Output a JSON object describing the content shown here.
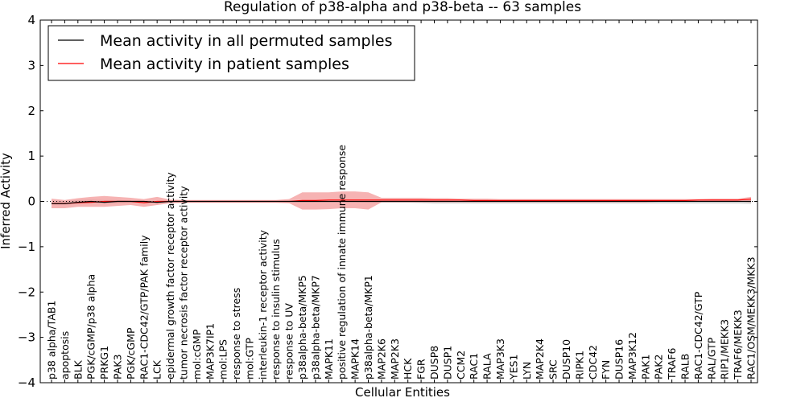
{
  "chart_data": {
    "type": "line",
    "title": "Regulation of p38-alpha and p38-beta -- 63 samples",
    "xlabel": "Cellular Entities",
    "ylabel": "Inferred Activity",
    "ylim": [
      -4,
      4
    ],
    "yticks": [
      4,
      3,
      2,
      1,
      0,
      -1,
      -2,
      -3,
      -4
    ],
    "ytick_labels": [
      "4",
      "3",
      "2",
      "1",
      "0",
      "−1",
      "−2",
      "−3",
      "−4"
    ],
    "legend_location": "top-left",
    "categories": [
      "p38 alpha/TAB1",
      "apoptosis",
      "BLK",
      "PGK/cGMP/p38 alpha",
      "PRKG1",
      "PAK3",
      "PGK/cGMP",
      "RAC1-CDC42/GTP/PAK family",
      "LCK",
      "epidermal growth factor receptor activity",
      "tumor necrosis factor receptor activity",
      "mol:cGMP",
      "MAP3K7IP1",
      "mol:LPS",
      "response to stress",
      "mol:GTP",
      "interleukin-1 receptor activity",
      "response to insulin stimulus",
      "response to UV",
      "p38alpha-beta/MKP5",
      "p38alpha-beta/MKP7",
      "MAPK11",
      "positive regulation of innate immune response",
      "MAPK14",
      "p38alpha-beta/MKP1",
      "MAP2K6",
      "MAP2K3",
      "HCK",
      "FGR",
      "DUSP8",
      "DUSP1",
      "CCM2",
      "RAC1",
      "RALA",
      "MAP3K3",
      "YES1",
      "LYN",
      "MAP2K4",
      "SRC",
      "DUSP10",
      "RIPK1",
      "CDC42",
      "FYN",
      "DUSP16",
      "MAP3K12",
      "PAK1",
      "PAK2",
      "TRAF6",
      "RALB",
      "RAC1-CDC42/GTP",
      "RAL/GTP",
      "RIP1/MEKK3",
      "TRAF6/MEKK3",
      "RAC1/OSM/MEKK3/MKK3"
    ],
    "series": [
      {
        "name": "Mean activity in all permuted samples",
        "color": "#000000",
        "values": [
          -0.05,
          -0.05,
          -0.02,
          0.0,
          -0.02,
          0.0,
          0.0,
          0.0,
          -0.02,
          0.0,
          0.0,
          0.0,
          0.0,
          0.0,
          0.0,
          0.0,
          0.0,
          0.0,
          0.0,
          0.0,
          0.0,
          0.0,
          0.0,
          0.0,
          0.0,
          0.0,
          0.0,
          0.0,
          0.0,
          0.0,
          0.0,
          0.0,
          0.0,
          0.0,
          0.0,
          0.0,
          0.0,
          0.0,
          0.0,
          0.0,
          0.0,
          0.0,
          0.0,
          0.0,
          0.0,
          0.0,
          0.0,
          0.0,
          0.0,
          0.0,
          0.0,
          0.0,
          0.0,
          0.0
        ],
        "band_lower": [
          -0.07,
          -0.07,
          -0.05,
          -0.04,
          -0.05,
          -0.04,
          -0.03,
          -0.03,
          -0.04,
          -0.03,
          -0.02,
          -0.02,
          -0.02,
          -0.02,
          -0.02,
          -0.02,
          -0.02,
          -0.02,
          -0.02,
          -0.02,
          -0.02,
          -0.02,
          -0.02,
          -0.02,
          -0.03,
          -0.03,
          -0.03,
          -0.03,
          -0.04,
          -0.05,
          -0.05,
          -0.05,
          -0.05,
          -0.05,
          -0.05,
          -0.05,
          -0.05,
          -0.05,
          -0.05,
          -0.05,
          -0.05,
          -0.05,
          -0.05,
          -0.05,
          -0.05,
          -0.05,
          -0.05,
          -0.05,
          -0.05,
          -0.05,
          -0.05,
          -0.05,
          -0.05,
          -0.06
        ],
        "band_upper": [
          0.02,
          0.01,
          0.03,
          0.04,
          0.03,
          0.03,
          0.02,
          0.02,
          0.01,
          0.01,
          0.01,
          0.01,
          0.01,
          0.01,
          0.01,
          0.01,
          0.01,
          0.01,
          0.01,
          0.01,
          0.01,
          0.01,
          0.01,
          0.01,
          0.01,
          0.01,
          0.01,
          0.01,
          0.01,
          0.01,
          0.01,
          0.01,
          0.01,
          0.01,
          0.01,
          0.01,
          0.01,
          0.01,
          0.01,
          0.01,
          0.01,
          0.01,
          0.01,
          0.01,
          0.01,
          0.01,
          0.01,
          0.01,
          0.01,
          0.01,
          0.01,
          0.01,
          0.01,
          0.02
        ],
        "band_color": "#c8c8c8"
      },
      {
        "name": "Mean activity in patient samples",
        "color": "#ff0000",
        "values": [
          -0.05,
          -0.05,
          -0.03,
          -0.02,
          0.0,
          0.0,
          0.0,
          -0.03,
          0.0,
          0.0,
          0.0,
          0.0,
          0.0,
          0.0,
          0.0,
          0.0,
          0.0,
          0.0,
          0.0,
          0.02,
          0.02,
          0.03,
          0.03,
          0.03,
          0.03,
          0.03,
          0.03,
          0.03,
          0.03,
          0.03,
          0.03,
          0.03,
          0.02,
          0.02,
          0.02,
          0.02,
          0.02,
          0.02,
          0.02,
          0.02,
          0.02,
          0.02,
          0.02,
          0.02,
          0.02,
          0.02,
          0.02,
          0.02,
          0.02,
          0.03,
          0.03,
          0.03,
          0.03,
          0.05
        ],
        "band_lower": [
          -0.15,
          -0.15,
          -0.12,
          -0.12,
          -0.12,
          -0.1,
          -0.08,
          -0.12,
          -0.08,
          -0.04,
          -0.03,
          -0.03,
          -0.03,
          -0.03,
          -0.03,
          -0.03,
          -0.03,
          -0.03,
          -0.04,
          -0.18,
          -0.18,
          -0.17,
          -0.15,
          -0.15,
          -0.18,
          -0.02,
          -0.02,
          -0.02,
          -0.02,
          -0.02,
          -0.02,
          -0.02,
          -0.02,
          -0.02,
          -0.02,
          -0.02,
          -0.02,
          -0.02,
          -0.02,
          -0.02,
          -0.02,
          -0.02,
          -0.02,
          -0.02,
          -0.02,
          -0.02,
          -0.01,
          -0.01,
          -0.01,
          -0.01,
          -0.01,
          0.0,
          0.0,
          -0.02
        ],
        "band_upper": [
          0.06,
          0.03,
          0.07,
          0.1,
          0.12,
          0.1,
          0.08,
          0.05,
          0.1,
          0.04,
          0.03,
          0.03,
          0.03,
          0.03,
          0.03,
          0.03,
          0.03,
          0.03,
          0.05,
          0.2,
          0.2,
          0.2,
          0.22,
          0.22,
          0.2,
          0.08,
          0.08,
          0.08,
          0.08,
          0.07,
          0.07,
          0.06,
          0.06,
          0.06,
          0.05,
          0.05,
          0.05,
          0.05,
          0.05,
          0.05,
          0.05,
          0.05,
          0.05,
          0.05,
          0.05,
          0.05,
          0.05,
          0.05,
          0.05,
          0.05,
          0.06,
          0.06,
          0.06,
          0.1
        ],
        "band_color": "#f08080"
      }
    ],
    "reference_line": 0
  }
}
